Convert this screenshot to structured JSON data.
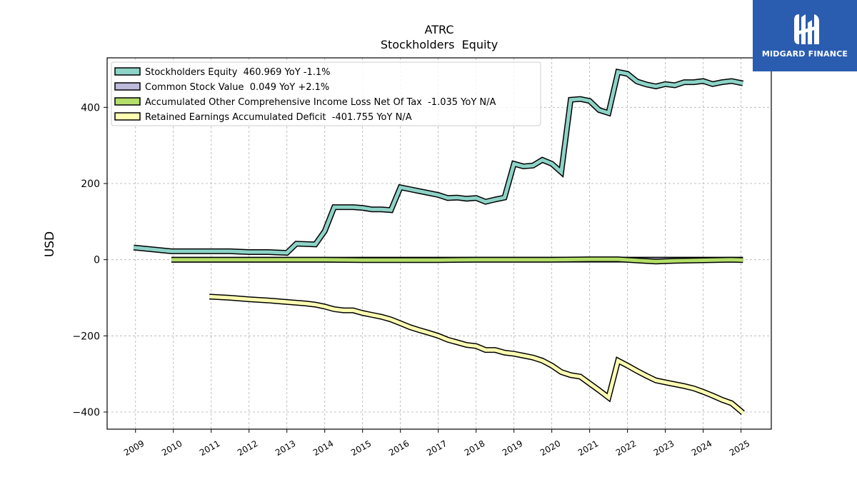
{
  "chart_data": {
    "type": "line",
    "title": "ATRC",
    "subtitle": "Stockholders  Equity",
    "ylabel": "USD",
    "xlabel": "",
    "ylim": [
      -445,
      530
    ],
    "xlim": [
      2008.25,
      2025.8
    ],
    "yticks": [
      -400,
      -200,
      0,
      200,
      400
    ],
    "ytick_labels": [
      "−400",
      "−200",
      "0",
      "200",
      "400"
    ],
    "xticks": [
      2009,
      2010,
      2011,
      2012,
      2013,
      2014,
      2015,
      2016,
      2017,
      2018,
      2019,
      2020,
      2021,
      2022,
      2023,
      2024,
      2025
    ],
    "xtick_labels": [
      "2009",
      "2010",
      "2011",
      "2012",
      "2013",
      "2014",
      "2015",
      "2016",
      "2017",
      "2018",
      "2019",
      "2020",
      "2021",
      "2022",
      "2023",
      "2024",
      "2025"
    ],
    "grid": true,
    "legend_position": "top-left",
    "series": [
      {
        "name": "Stockholders Equity  460.969 YoY -1.1%",
        "color": "#8dd3c7",
        "x": [
          2008.95,
          2009.95,
          2011.0,
          2011.5,
          2012.0,
          2012.5,
          2013.0,
          2013.25,
          2013.75,
          2014.0,
          2014.25,
          2014.5,
          2014.75,
          2015.0,
          2015.25,
          2015.5,
          2015.75,
          2016.0,
          2016.25,
          2016.5,
          2016.75,
          2017.0,
          2017.25,
          2017.5,
          2017.75,
          2018.0,
          2018.25,
          2018.5,
          2018.75,
          2019.0,
          2019.25,
          2019.5,
          2019.75,
          2020.0,
          2020.25,
          2020.5,
          2020.75,
          2021.0,
          2021.25,
          2021.5,
          2021.75,
          2022.0,
          2022.25,
          2022.5,
          2022.75,
          2023.0,
          2023.25,
          2023.5,
          2023.75,
          2024.0,
          2024.25,
          2024.5,
          2024.75,
          2025.05
        ],
        "y": [
          32,
          22,
          22,
          22,
          20,
          20,
          18,
          42,
          40,
          75,
          138,
          138,
          138,
          136,
          132,
          132,
          130,
          190,
          185,
          180,
          175,
          170,
          162,
          163,
          160,
          162,
          152,
          158,
          163,
          252,
          245,
          247,
          262,
          252,
          230,
          420,
          422,
          417,
          393,
          385,
          493,
          488,
          468,
          460,
          455,
          461,
          458,
          466,
          466,
          469,
          461,
          466,
          469,
          463
        ]
      },
      {
        "name": "Common Stock Value  0.049 YoY +2.1%",
        "color": "#bebada",
        "x": [
          2009.95,
          2011.0,
          2012.0,
          2013.0,
          2014.0,
          2015.0,
          2016.0,
          2017.0,
          2018.0,
          2019.0,
          2020.0,
          2021.0,
          2021.75,
          2022.5,
          2023.0,
          2023.5,
          2024.0,
          2024.5,
          2025.05
        ],
        "y": [
          0.03,
          0.03,
          0.03,
          0.03,
          0.03,
          0.04,
          0.04,
          0.04,
          0.04,
          0.04,
          0.04,
          0.05,
          0.05,
          0.05,
          0.05,
          0.05,
          0.05,
          0.05,
          0.05
        ]
      },
      {
        "name": "Accumulated Other Comprehensive Income Loss Net Of Tax  -1.035 YoY N/A",
        "color": "#b3de69",
        "x": [
          2009.95,
          2011.0,
          2012.0,
          2013.0,
          2014.0,
          2015.0,
          2016.0,
          2017.0,
          2018.0,
          2019.0,
          2020.0,
          2021.0,
          2021.75,
          2022.25,
          2022.75,
          2023.25,
          2023.75,
          2024.25,
          2024.75,
          2025.05
        ],
        "y": [
          0,
          0,
          0,
          0,
          0,
          -1,
          -1,
          -1,
          0,
          0,
          0,
          1,
          1,
          -2,
          -5,
          -3,
          -2,
          -1,
          0,
          -1
        ]
      },
      {
        "name": "Retained Earnings Accumulated Deficit  -401.755 YoY N/A",
        "color": "#ffffb3",
        "x": [
          2010.95,
          2011.5,
          2012.0,
          2012.5,
          2013.0,
          2013.5,
          2013.75,
          2014.0,
          2014.25,
          2014.5,
          2014.75,
          2015.0,
          2015.25,
          2015.5,
          2015.75,
          2016.0,
          2016.25,
          2016.5,
          2016.75,
          2017.0,
          2017.25,
          2017.5,
          2017.75,
          2018.0,
          2018.25,
          2018.5,
          2018.75,
          2019.0,
          2019.25,
          2019.5,
          2019.75,
          2020.0,
          2020.25,
          2020.5,
          2020.75,
          2021.0,
          2021.25,
          2021.5,
          2021.75,
          2022.0,
          2022.25,
          2022.5,
          2022.75,
          2023.0,
          2023.25,
          2023.5,
          2023.75,
          2024.0,
          2024.25,
          2024.5,
          2024.75,
          2025.05
        ],
        "y": [
          -97,
          -100,
          -104,
          -107,
          -111,
          -115,
          -118,
          -123,
          -130,
          -133,
          -133,
          -140,
          -145,
          -150,
          -157,
          -167,
          -177,
          -185,
          -192,
          -200,
          -210,
          -217,
          -224,
          -227,
          -237,
          -237,
          -244,
          -247,
          -252,
          -257,
          -265,
          -278,
          -295,
          -303,
          -307,
          -325,
          -343,
          -362,
          -265,
          -278,
          -292,
          -305,
          -317,
          -322,
          -327,
          -332,
          -338,
          -347,
          -357,
          -368,
          -377,
          -402
        ]
      }
    ]
  },
  "logo": {
    "text": "MIDGARD FINANCE"
  }
}
